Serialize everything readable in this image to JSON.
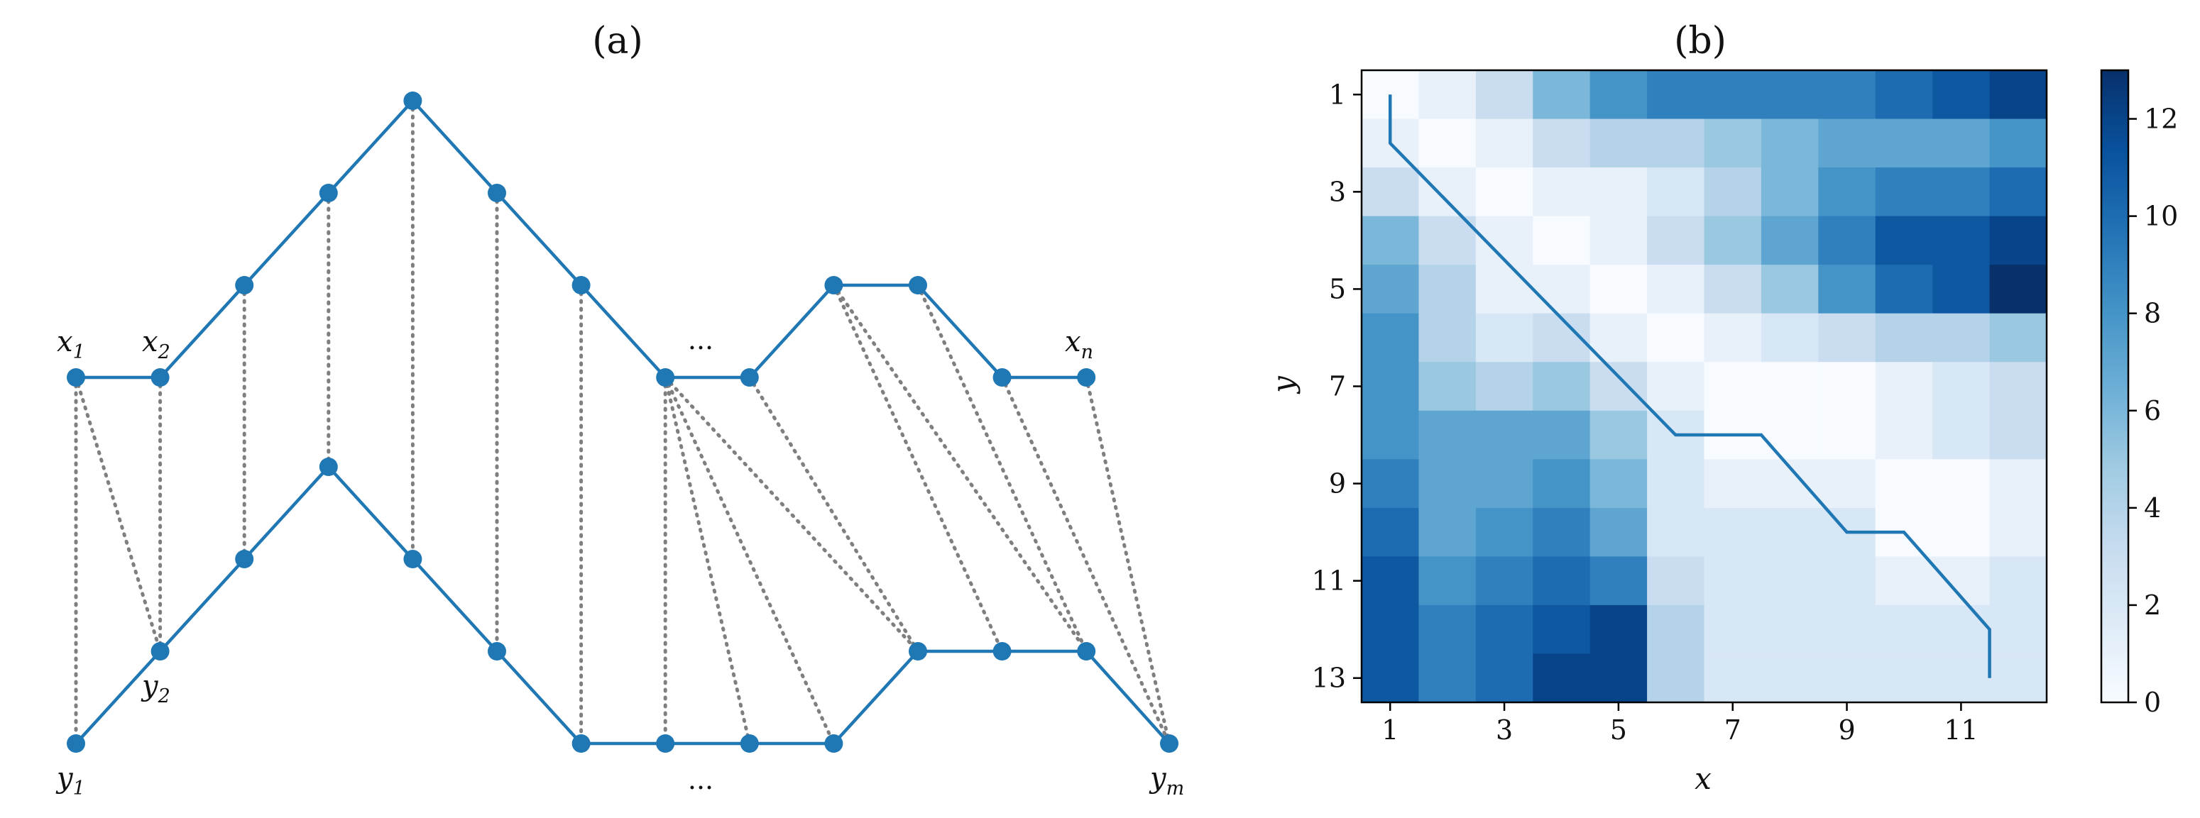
{
  "chart_data": [
    {
      "type": "diagram",
      "title": "(a)",
      "top_series": {
        "name": "x",
        "y": [
          0,
          0,
          1,
          2,
          3,
          2,
          1,
          0,
          0,
          1,
          1,
          0,
          0
        ]
      },
      "bottom_series": {
        "name": "y",
        "y": [
          0,
          1,
          2,
          3,
          2,
          1,
          0,
          0,
          0,
          0,
          1,
          1,
          1,
          0
        ]
      },
      "alignment": [
        [
          0,
          0
        ],
        [
          0,
          1
        ],
        [
          1,
          1
        ],
        [
          2,
          2
        ],
        [
          3,
          3
        ],
        [
          4,
          4
        ],
        [
          5,
          5
        ],
        [
          6,
          6
        ],
        [
          7,
          7
        ],
        [
          7,
          8
        ],
        [
          7,
          9
        ],
        [
          7,
          10
        ],
        [
          8,
          10
        ],
        [
          9,
          11
        ],
        [
          9,
          12
        ],
        [
          10,
          12
        ],
        [
          11,
          13
        ],
        [
          12,
          13
        ]
      ],
      "labels": {
        "x1": {
          "base": "x",
          "sub": "1"
        },
        "x2": {
          "base": "x",
          "sub": "2"
        },
        "xn": {
          "base": "x",
          "sub": "n"
        },
        "y1": {
          "base": "y",
          "sub": "1"
        },
        "y2": {
          "base": "y",
          "sub": "2"
        },
        "ym": {
          "base": "y",
          "sub": "m"
        },
        "top_ellipsis": "...",
        "bottom_ellipsis": "..."
      },
      "colors": {
        "line": "#1f77b4",
        "marker": "#1f77b4",
        "match": "#7f7f7f"
      }
    },
    {
      "type": "heatmap",
      "title": "(b)",
      "xlabel": "x",
      "ylabel": "y",
      "xticks": [
        "1",
        "3",
        "5",
        "7",
        "9",
        "11"
      ],
      "yticks": [
        "1",
        "3",
        "5",
        "7",
        "9",
        "11",
        "13"
      ],
      "x_len": 12,
      "y_len": 13,
      "matrix": [
        [
          0,
          1,
          3,
          6,
          8,
          9,
          9,
          9,
          9,
          10,
          11,
          12
        ],
        [
          1,
          0,
          1,
          3,
          4,
          4,
          5,
          6,
          7,
          7,
          7,
          8
        ],
        [
          3,
          1,
          0,
          1,
          1,
          2,
          4,
          6,
          8,
          9,
          9,
          10
        ],
        [
          6,
          3,
          1,
          0,
          1,
          3,
          5,
          7,
          9,
          11,
          11,
          12
        ],
        [
          7,
          4,
          1,
          1,
          0,
          1,
          3,
          5,
          8,
          10,
          11,
          13
        ],
        [
          8,
          4,
          2,
          3,
          1,
          0,
          1,
          2,
          3,
          4,
          4,
          5
        ],
        [
          8,
          5,
          4,
          5,
          3,
          1,
          0,
          0,
          0,
          1,
          2,
          3
        ],
        [
          8,
          7,
          7,
          7,
          5,
          2,
          0,
          0,
          0,
          1,
          2,
          3
        ],
        [
          9,
          7,
          7,
          8,
          6,
          2,
          1,
          1,
          1,
          0,
          0,
          1
        ],
        [
          10,
          7,
          8,
          9,
          7,
          2,
          2,
          2,
          2,
          0,
          0,
          1
        ],
        [
          11,
          8,
          9,
          10,
          9,
          3,
          2,
          2,
          2,
          1,
          1,
          2
        ],
        [
          11,
          9,
          10,
          11,
          12,
          4,
          2,
          2,
          2,
          2,
          2,
          2
        ],
        [
          11,
          9,
          10,
          12,
          12,
          4,
          2,
          2,
          2,
          2,
          2,
          2
        ]
      ],
      "colorbar": {
        "ticks": [
          "0",
          "2",
          "4",
          "6",
          "8",
          "10",
          "12"
        ],
        "min": 0,
        "max": 13
      },
      "path": [
        [
          1,
          1
        ],
        [
          1,
          2
        ],
        [
          6,
          8
        ],
        [
          7.5,
          8
        ],
        [
          9,
          10
        ],
        [
          10,
          10
        ],
        [
          11.5,
          12
        ],
        [
          11.5,
          13
        ]
      ],
      "colors": {
        "path": "#1f77b4",
        "cmap": "Blues"
      }
    }
  ]
}
